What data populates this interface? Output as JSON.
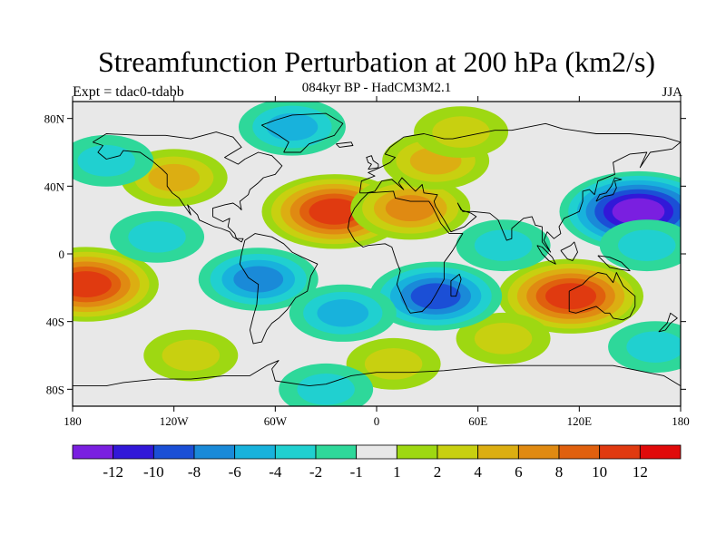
{
  "header": {
    "title": "Streamfunction Perturbation at 200 hPa (km2/s)",
    "subtitle": "084kyr BP - HadCM3M2.1",
    "left_label": "Expt = tdac0-tdabb",
    "right_label": "JJA"
  },
  "axes": {
    "lat_ticks": [
      {
        "value": 80,
        "label": "80N"
      },
      {
        "value": 40,
        "label": "40N"
      },
      {
        "value": 0,
        "label": "0"
      },
      {
        "value": -40,
        "label": "40S"
      },
      {
        "value": -80,
        "label": "80S"
      }
    ],
    "lon_ticks": [
      {
        "value": -180,
        "label": "180"
      },
      {
        "value": -120,
        "label": "120W"
      },
      {
        "value": -60,
        "label": "60W"
      },
      {
        "value": 0,
        "label": "0"
      },
      {
        "value": 60,
        "label": "60E"
      },
      {
        "value": 120,
        "label": "120E"
      },
      {
        "value": 180,
        "label": "180"
      }
    ]
  },
  "colorbar": {
    "colors": [
      "#7a1fe0",
      "#3218d8",
      "#1b4fd6",
      "#1a8ad8",
      "#18b2dc",
      "#20d0d0",
      "#2ed89a",
      "#e8e8e8",
      "#9ed812",
      "#c8d010",
      "#dcae12",
      "#e08a12",
      "#e0600e",
      "#e03a10",
      "#e00a0a"
    ],
    "labels": [
      "-12",
      "-10",
      "-8",
      "-6",
      "-4",
      "-2",
      "-1",
      "1",
      "2",
      "4",
      "6",
      "8",
      "10",
      "12"
    ]
  },
  "colors": {
    "neutral": "#e8e8e8",
    "coast": "#000000"
  },
  "map_features": {
    "anomaly_centers": [
      {
        "name": "north-atlantic-high",
        "lon": -25,
        "lat": 25,
        "value": 11
      },
      {
        "name": "north-africa-high",
        "lon": 20,
        "lat": 27,
        "value": 7
      },
      {
        "name": "central-europe-high",
        "lon": 35,
        "lat": 55,
        "value": 5
      },
      {
        "name": "north-america-high",
        "lon": -120,
        "lat": 45,
        "value": 5
      },
      {
        "name": "arctic-siberia-high",
        "lon": 50,
        "lat": 72,
        "value": 3
      },
      {
        "name": "south-pacific-high",
        "lon": -172,
        "lat": -18,
        "value": 10
      },
      {
        "name": "australia-high",
        "lon": 115,
        "lat": -25,
        "value": 11
      },
      {
        "name": "south-indian-high",
        "lon": 75,
        "lat": -50,
        "value": 3
      },
      {
        "name": "southeast-pacific-high",
        "lon": -110,
        "lat": -60,
        "value": 2
      },
      {
        "name": "antarctic-atlantic-high",
        "lon": 10,
        "lat": -65,
        "value": 3
      },
      {
        "name": "west-pacific-low",
        "lon": 155,
        "lat": 25,
        "value": -12
      },
      {
        "name": "south-africa-low",
        "lon": 35,
        "lat": -25,
        "value": -9
      },
      {
        "name": "south-america-low",
        "lon": -70,
        "lat": -15,
        "value": -7
      },
      {
        "name": "south-atlantic-low",
        "lon": -20,
        "lat": -35,
        "value": -4
      },
      {
        "name": "greenland-low",
        "lon": -50,
        "lat": 75,
        "value": -4
      },
      {
        "name": "north-pacific-low",
        "lon": -160,
        "lat": 55,
        "value": -3
      },
      {
        "name": "east-pacific-low",
        "lon": -130,
        "lat": 10,
        "value": -3
      },
      {
        "name": "indian-ocean-low",
        "lon": 75,
        "lat": 5,
        "value": -3
      },
      {
        "name": "pacific-low",
        "lon": 160,
        "lat": 5,
        "value": -3
      },
      {
        "name": "southwest-pacific-low",
        "lon": 165,
        "lat": -55,
        "value": -3
      },
      {
        "name": "southern-ocean-low",
        "lon": -30,
        "lat": -80,
        "value": -2
      }
    ]
  }
}
